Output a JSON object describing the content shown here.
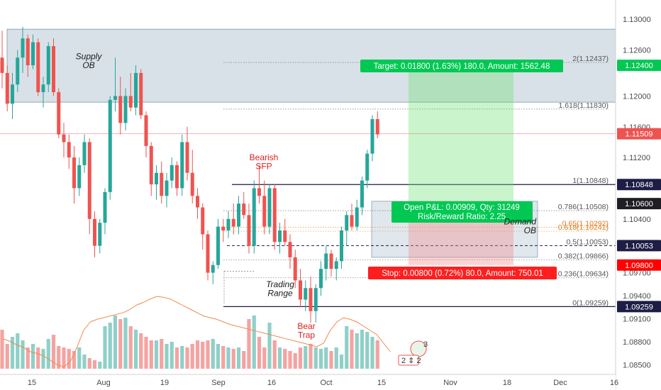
{
  "chart_data": {
    "type": "candlestick",
    "y_range": [
      1.0845,
      1.1325
    ],
    "price_ticks": [
      "1.13000",
      "1.12600",
      "1.12400",
      "1.12000",
      "1.11600",
      "1.11200",
      "1.10848",
      "1.10600",
      "1.10400",
      "1.10053",
      "1.09800",
      "1.09700",
      "1.09400",
      "1.09259",
      "1.09100",
      "1.08800",
      "1.08500"
    ],
    "x_ticks": [
      "15",
      "Aug",
      "19",
      "Sep",
      "16",
      "Oct",
      "15",
      "Nov",
      "18",
      "Dec",
      "16"
    ],
    "price_tags": [
      {
        "label": "1.12400",
        "value": 1.124,
        "color": "#00c853",
        "text_color": "#ffffff"
      },
      {
        "label": "1.11509",
        "value": 1.11509,
        "color": "#ef5350",
        "text_color": "#ffffff"
      },
      {
        "label": "1.10848",
        "value": 1.10848,
        "color": "#1d1d45",
        "text_color": "#ffffff"
      },
      {
        "label": "1.10600",
        "value": 1.106,
        "color": "#1e1e24",
        "text_color": "#ffffff"
      },
      {
        "label": "1.10053",
        "value": 1.10053,
        "color": "#1d1d45",
        "text_color": "#ffffff"
      },
      {
        "label": "1.09800",
        "value": 1.098,
        "color": "#ff0000",
        "text_color": "#ffffff"
      },
      {
        "label": "1.09259",
        "value": 1.09259,
        "color": "#1d1d45",
        "text_color": "#ffffff"
      }
    ],
    "fib_levels": [
      {
        "label": "2(1.12437)",
        "value": 1.12437
      },
      {
        "label": "1.618(1.11830)",
        "value": 1.1183
      },
      {
        "label": "1(1.10848)",
        "value": 1.10848
      },
      {
        "label": "0.786(1.10508)",
        "value": 1.10508
      },
      {
        "label": "0.65(1.10292)",
        "value": 1.10292
      },
      {
        "label": "0.618(1.10241)",
        "value": 1.10241
      },
      {
        "label": "0.5(1.10053)",
        "value": 1.10053
      },
      {
        "label": "0.382(1.09866)",
        "value": 1.09866
      },
      {
        "label": "0.236(1.09634)",
        "value": 1.09634
      },
      {
        "label": "0(1.09259)",
        "value": 1.09259
      }
    ],
    "supply_zone": {
      "label": "Supply\nOB",
      "top": 1.1287,
      "bottom": 1.1192
    },
    "demand_zone": {
      "label": "Demand\nOB",
      "top": 1.1063,
      "bottom": 1.099
    },
    "position": {
      "entry": 1.106,
      "target": 1.124,
      "stop": 1.098,
      "target_text": "Target: 0.01800 (1.63%) 180.0, Amount: 1562.48",
      "stop_text": "Stop: 0.00800 (0.72%) 80.0, Amount: 750.01",
      "pnl_text": "Open P&L: 0.00909, Qty: 31249",
      "rr_text": "Risk/Reward Ratio: 2.25"
    },
    "annotations": {
      "bearish_sfp": "Bearish\nSFP",
      "trading_range": "Trading\nRange",
      "bear_trap": "Bear\nTrap"
    },
    "current_price": 1.11509,
    "candles": [
      [
        1.125,
        1.1285,
        1.121,
        1.123
      ],
      [
        1.123,
        1.124,
        1.118,
        1.119
      ],
      [
        1.119,
        1.123,
        1.117,
        1.1215
      ],
      [
        1.1215,
        1.126,
        1.1205,
        1.125
      ],
      [
        1.125,
        1.129,
        1.123,
        1.1275
      ],
      [
        1.1275,
        1.128,
        1.1225,
        1.124
      ],
      [
        1.124,
        1.128,
        1.1235,
        1.127
      ],
      [
        1.127,
        1.1275,
        1.12,
        1.1205
      ],
      [
        1.1205,
        1.1225,
        1.1185,
        1.1215
      ],
      [
        1.1215,
        1.127,
        1.1205,
        1.1265
      ],
      [
        1.1265,
        1.1275,
        1.12,
        1.1205
      ],
      [
        1.1205,
        1.121,
        1.1145,
        1.115
      ],
      [
        1.115,
        1.1165,
        1.112,
        1.114
      ],
      [
        1.114,
        1.115,
        1.1105,
        1.112
      ],
      [
        1.112,
        1.1135,
        1.106,
        1.108
      ],
      [
        1.108,
        1.112,
        1.107,
        1.111
      ],
      [
        1.111,
        1.115,
        1.11,
        1.114
      ],
      [
        1.114,
        1.1145,
        1.102,
        1.104
      ],
      [
        1.104,
        1.105,
        1.099,
        1.1005
      ],
      [
        1.1005,
        1.104,
        1.0995,
        1.1035
      ],
      [
        1.1035,
        1.108,
        1.102,
        1.1075
      ],
      [
        1.1075,
        1.12,
        1.1065,
        1.1195
      ],
      [
        1.1195,
        1.125,
        1.118,
        1.12
      ],
      [
        1.12,
        1.1225,
        1.115,
        1.1165
      ],
      [
        1.1165,
        1.121,
        1.1155,
        1.12
      ],
      [
        1.12,
        1.123,
        1.118,
        1.1185
      ],
      [
        1.1185,
        1.124,
        1.1175,
        1.123
      ],
      [
        1.123,
        1.1235,
        1.117,
        1.1175
      ],
      [
        1.1175,
        1.118,
        1.112,
        1.1135
      ],
      [
        1.1135,
        1.114,
        1.107,
        1.1085
      ],
      [
        1.1085,
        1.111,
        1.1065,
        1.11
      ],
      [
        1.11,
        1.1115,
        1.106,
        1.107
      ],
      [
        1.107,
        1.11,
        1.1055,
        1.109
      ],
      [
        1.109,
        1.112,
        1.108,
        1.111
      ],
      [
        1.111,
        1.1115,
        1.107,
        1.108
      ],
      [
        1.108,
        1.115,
        1.107,
        1.114
      ],
      [
        1.114,
        1.116,
        1.109,
        1.11
      ],
      [
        1.11,
        1.113,
        1.106,
        1.107
      ],
      [
        1.107,
        1.108,
        1.104,
        1.1055
      ],
      [
        1.1055,
        1.106,
        1.1,
        1.102
      ],
      [
        1.102,
        1.1025,
        1.096,
        1.097
      ],
      [
        1.097,
        1.0985,
        1.0955,
        1.098
      ],
      [
        1.098,
        1.104,
        1.0975,
        1.103
      ],
      [
        1.103,
        1.104,
        1.101,
        1.1025
      ],
      [
        1.1025,
        1.105,
        1.1015,
        1.104
      ],
      [
        1.104,
        1.106,
        1.102,
        1.103
      ],
      [
        1.103,
        1.107,
        1.102,
        1.106
      ],
      [
        1.106,
        1.1075,
        1.104,
        1.1045
      ],
      [
        1.1045,
        1.106,
        1.0995,
        1.1005
      ],
      [
        1.1005,
        1.109,
        1.0995,
        1.108
      ],
      [
        1.108,
        1.111,
        1.106,
        1.107
      ],
      [
        1.107,
        1.109,
        1.102,
        1.103
      ],
      [
        1.103,
        1.1085,
        1.102,
        1.108
      ],
      [
        1.108,
        1.1085,
        1.1,
        1.101
      ],
      [
        1.101,
        1.1035,
        1.0995,
        1.1025
      ],
      [
        1.1025,
        1.104,
        1.1005,
        1.101
      ],
      [
        1.101,
        1.102,
        1.0975,
        1.099
      ],
      [
        1.099,
        1.1,
        1.095,
        1.096
      ],
      [
        1.096,
        1.0975,
        1.0925,
        1.0935
      ],
      [
        1.0935,
        1.096,
        1.092,
        1.095
      ],
      [
        1.095,
        1.0965,
        1.0905,
        1.092
      ],
      [
        1.092,
        1.0955,
        1.0905,
        1.095
      ],
      [
        1.095,
        1.0985,
        1.094,
        1.0975
      ],
      [
        1.0975,
        1.1005,
        1.096,
        1.0995
      ],
      [
        1.0995,
        1.1,
        1.0965,
        1.0975
      ],
      [
        1.0975,
        1.099,
        1.096,
        1.0985
      ],
      [
        1.0985,
        1.103,
        1.0975,
        1.1025
      ],
      [
        1.1025,
        1.105,
        1.1005,
        1.1045
      ],
      [
        1.1045,
        1.106,
        1.1025,
        1.103
      ],
      [
        1.103,
        1.1065,
        1.1025,
        1.1055
      ],
      [
        1.1055,
        1.1095,
        1.1045,
        1.109
      ],
      [
        1.109,
        1.113,
        1.108,
        1.1125
      ],
      [
        1.1125,
        1.1175,
        1.1115,
        1.117
      ],
      [
        1.117,
        1.118,
        1.1145,
        1.115
      ]
    ],
    "volume": [
      0.55,
      0.35,
      0.45,
      0.5,
      0.4,
      0.3,
      0.35,
      0.3,
      0.28,
      0.42,
      0.48,
      0.32,
      0.3,
      0.28,
      0.25,
      0.3,
      0.2,
      0.15,
      0.12,
      0.1,
      0.6,
      0.65,
      0.75,
      0.7,
      0.72,
      0.6,
      0.55,
      0.5,
      0.45,
      0.4,
      0.4,
      0.42,
      0.35,
      0.38,
      0.3,
      0.32,
      0.3,
      0.35,
      0.4,
      0.38,
      0.4,
      0.42,
      0.35,
      0.32,
      0.3,
      0.28,
      0.3,
      0.25,
      0.7,
      0.75,
      0.45,
      0.3,
      0.65,
      0.4,
      0.3,
      0.28,
      0.25,
      0.22,
      0.3,
      0.32,
      0.35,
      0.3,
      0.28,
      0.3,
      0.25,
      0.3,
      0.2,
      0.6,
      0.55,
      0.5,
      0.55,
      0.52,
      0.45,
      0.4
    ],
    "ma_line": [
      0.35,
      0.32,
      0.28,
      0.25,
      0.2,
      0.18,
      0.15,
      0.1,
      0.05,
      0.02,
      0.08,
      0.25,
      0.45,
      0.55,
      0.58,
      0.6,
      0.62,
      0.64,
      0.66,
      0.7,
      0.75,
      0.78,
      0.82,
      0.85,
      0.84,
      0.82,
      0.78,
      0.74,
      0.7,
      0.66,
      0.62,
      0.6,
      0.58,
      0.55,
      0.52,
      0.5,
      0.48,
      0.46,
      0.44,
      0.42,
      0.4,
      0.38,
      0.36,
      0.34,
      0.32,
      0.3,
      0.28,
      0.26,
      0.3,
      0.45,
      0.55,
      0.6,
      0.58,
      0.55,
      0.5,
      0.45,
      0.4,
      0.3,
      0.2
    ]
  },
  "widget": {
    "count": "3",
    "row": "2 ⇕ 2"
  }
}
